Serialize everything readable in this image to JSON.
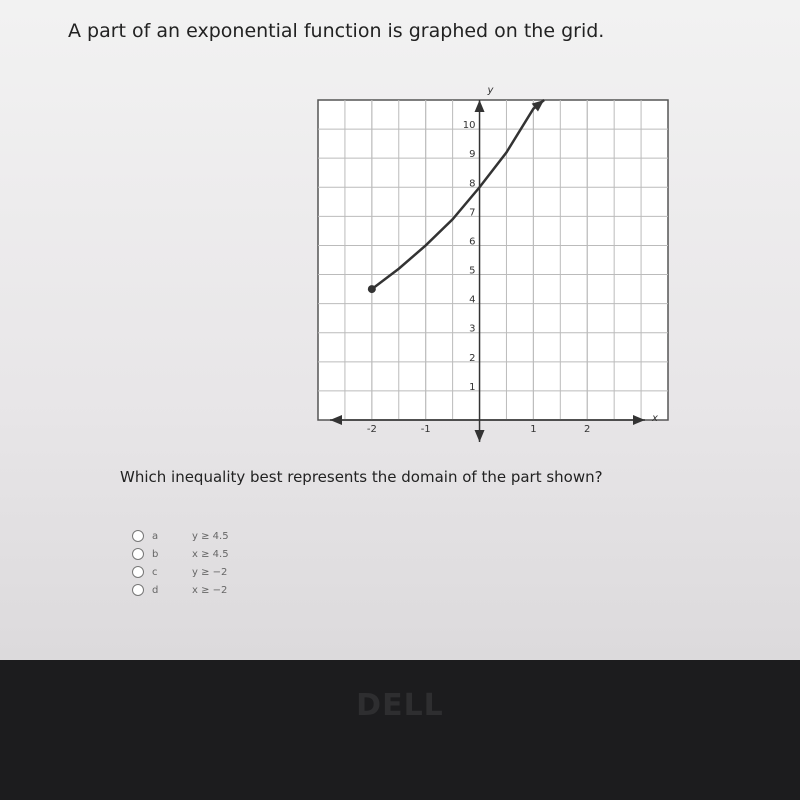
{
  "question": {
    "prompt": "A part of an exponential function is graphed on the grid.",
    "graph": {
      "type": "line",
      "x_label": "x",
      "y_label": "y",
      "xlim": [
        -3,
        3.5
      ],
      "ylim": [
        0,
        11
      ],
      "xticks": [
        -2,
        -1,
        1,
        2
      ],
      "yticks": [
        1,
        2,
        3,
        4,
        5,
        6,
        7,
        8,
        9,
        10
      ],
      "grid": true,
      "color": "#333333",
      "x": [
        -2,
        -1.5,
        -1,
        -0.5,
        0,
        0.5,
        1,
        1.2
      ],
      "y": [
        4.5,
        5.2,
        6,
        6.9,
        8,
        9.2,
        10.7,
        11
      ]
    },
    "ask": "Which inequality best represents the domain of the part shown?",
    "options": [
      {
        "letter": "a",
        "text": "y ≥ 4.5"
      },
      {
        "letter": "b",
        "text": "x ≥ 4.5"
      },
      {
        "letter": "c",
        "text": "y ≥ −2"
      },
      {
        "letter": "d",
        "text": "x ≥ −2"
      }
    ]
  },
  "bezel_logo": "DELL"
}
